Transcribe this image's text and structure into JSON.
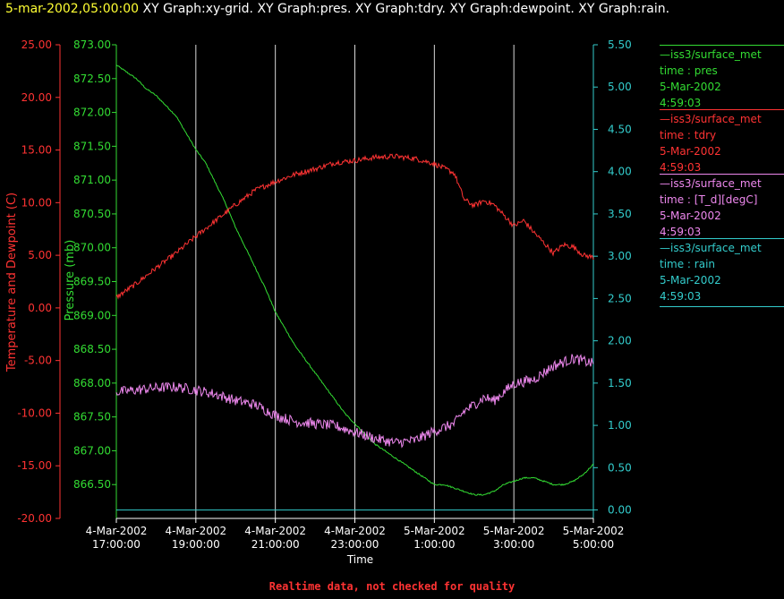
{
  "header": {
    "date": "5-mar-2002,05:00:00",
    "title": "XY Graph:xy-grid. XY Graph:pres. XY Graph:tdry. XY Graph:dewpoint. XY Graph:rain."
  },
  "footer": {
    "note": "Realtime data, not checked for quality"
  },
  "colors": {
    "background": "#000000",
    "tdry": "#ff3333",
    "pres": "#33dd33",
    "dewpoint": "#ee88ee",
    "rain": "#33cccc",
    "grid": "#ffffff"
  },
  "legend": [
    {
      "title": "iss3/surface_met",
      "field": "time : pres",
      "date": "5-Mar-2002",
      "time": "4:59:03",
      "color": "#33dd33"
    },
    {
      "title": "iss3/surface_met",
      "field": "time : tdry",
      "date": "5-Mar-2002",
      "time": "4:59:03",
      "color": "#ff3333"
    },
    {
      "title": "iss3/surface_met",
      "field": "time : [T_d][degC]",
      "date": "5-Mar-2002",
      "time": "4:59:03",
      "color": "#ee88ee"
    },
    {
      "title": "iss3/surface_met",
      "field": "time : rain",
      "date": "5-Mar-2002",
      "time": "4:59:03",
      "color": "#33cccc"
    }
  ],
  "chart_data": {
    "type": "line",
    "x_unit": "hours",
    "xlim": [
      17,
      29
    ],
    "xlabel": "Time",
    "x_ticks": [
      {
        "value": 17,
        "date": "4-Mar-2002",
        "time": "17:00:00"
      },
      {
        "value": 19,
        "date": "4-Mar-2002",
        "time": "19:00:00"
      },
      {
        "value": 21,
        "date": "4-Mar-2002",
        "time": "21:00:00"
      },
      {
        "value": 23,
        "date": "4-Mar-2002",
        "time": "23:00:00"
      },
      {
        "value": 25,
        "date": "5-Mar-2002",
        "time": "1:00:00"
      },
      {
        "value": 27,
        "date": "5-Mar-2002",
        "time": "3:00:00"
      },
      {
        "value": 29,
        "date": "5-Mar-2002",
        "time": "5:00:00"
      }
    ],
    "grid": "vertical",
    "axes": {
      "temp": {
        "label": "Temperature and Dewpoint (C)",
        "lim": [
          -20,
          25
        ],
        "ticks": [
          "25.00",
          "20.00",
          "15.00",
          "10.00",
          "5.00",
          "0.00",
          "-5.00",
          "-10.00",
          "-15.00",
          "-20.00"
        ]
      },
      "pres": {
        "label": "Pressure (mb)",
        "lim": [
          866,
          873
        ],
        "ticks": [
          "873.00",
          "872.50",
          "872.00",
          "871.50",
          "871.00",
          "870.50",
          "870.00",
          "869.50",
          "869.00",
          "868.50",
          "868.00",
          "867.50",
          "867.00",
          "866.50"
        ]
      },
      "rain": {
        "label": "",
        "lim": [
          -0.1,
          5.5
        ],
        "ticks": [
          "5.50",
          "5.00",
          "4.50",
          "4.00",
          "3.50",
          "3.00",
          "2.50",
          "2.00",
          "1.50",
          "1.00",
          "0.50",
          "0.00"
        ]
      }
    },
    "series": [
      {
        "key": "pres",
        "axis": "pres",
        "color": "#33dd33",
        "noise": 0.01,
        "x": [
          17,
          17.25,
          17.5,
          17.75,
          18,
          18.25,
          18.5,
          18.75,
          19,
          19.25,
          19.5,
          19.75,
          20,
          20.25,
          20.5,
          20.75,
          21,
          21.25,
          21.5,
          21.75,
          22,
          22.25,
          22.5,
          22.75,
          23,
          23.25,
          23.5,
          23.75,
          24,
          24.25,
          24.5,
          24.75,
          25,
          25.25,
          25.5,
          25.75,
          26,
          26.25,
          26.5,
          26.75,
          27,
          27.25,
          27.5,
          27.75,
          28,
          28.25,
          28.5,
          28.75,
          29
        ],
        "y": [
          872.7,
          872.6,
          872.5,
          872.35,
          872.25,
          872.1,
          871.95,
          871.7,
          871.45,
          871.25,
          870.95,
          870.65,
          870.3,
          870.0,
          869.7,
          869.4,
          869.05,
          868.8,
          868.55,
          868.35,
          868.15,
          867.95,
          867.75,
          867.55,
          867.4,
          867.25,
          867.1,
          867.0,
          866.9,
          866.8,
          866.7,
          866.6,
          866.5,
          866.5,
          866.45,
          866.4,
          866.35,
          866.35,
          866.4,
          866.5,
          866.55,
          866.6,
          866.6,
          866.55,
          866.5,
          866.5,
          866.55,
          866.65,
          866.8
        ]
      },
      {
        "key": "tdry",
        "axis": "temp",
        "color": "#ff3333",
        "noise": 0.25,
        "x": [
          17,
          17.5,
          18,
          18.5,
          19,
          19.5,
          20,
          20.5,
          21,
          21.5,
          22,
          22.5,
          23,
          23.5,
          24,
          24.5,
          25,
          25.5,
          25.75,
          26,
          26.25,
          26.5,
          26.75,
          27,
          27.25,
          27.5,
          27.75,
          28,
          28.25,
          28.5,
          28.75,
          29
        ],
        "y": [
          1.0,
          2.3,
          3.8,
          5.2,
          6.8,
          8.3,
          9.8,
          11.2,
          12.0,
          12.7,
          13.2,
          13.8,
          14.0,
          14.3,
          14.4,
          14.2,
          13.7,
          12.8,
          10.3,
          9.7,
          10.2,
          9.8,
          8.8,
          7.8,
          8.3,
          7.2,
          6.2,
          5.2,
          6.0,
          5.8,
          5.0,
          4.8
        ]
      },
      {
        "key": "dewpoint",
        "axis": "temp",
        "color": "#ee88ee",
        "noise": 0.5,
        "x": [
          17,
          17.5,
          18,
          18.5,
          19,
          19.5,
          20,
          20.5,
          21,
          21.5,
          22,
          22.5,
          23,
          23.5,
          24,
          24.5,
          25,
          25.5,
          25.75,
          26,
          26.25,
          26.5,
          26.75,
          27,
          27.5,
          28,
          28.5,
          29
        ],
        "y": [
          -8.0,
          -7.8,
          -7.6,
          -7.5,
          -7.8,
          -8.2,
          -8.8,
          -9.2,
          -10.2,
          -10.8,
          -11.0,
          -11.2,
          -11.8,
          -12.4,
          -12.8,
          -12.6,
          -11.7,
          -11.0,
          -9.8,
          -9.2,
          -8.5,
          -8.8,
          -8.0,
          -7.2,
          -6.8,
          -5.5,
          -4.8,
          -5.3
        ]
      },
      {
        "key": "rain",
        "axis": "rain",
        "color": "#33cccc",
        "noise": 0,
        "x": [
          17,
          29
        ],
        "y": [
          0,
          0
        ]
      }
    ]
  }
}
